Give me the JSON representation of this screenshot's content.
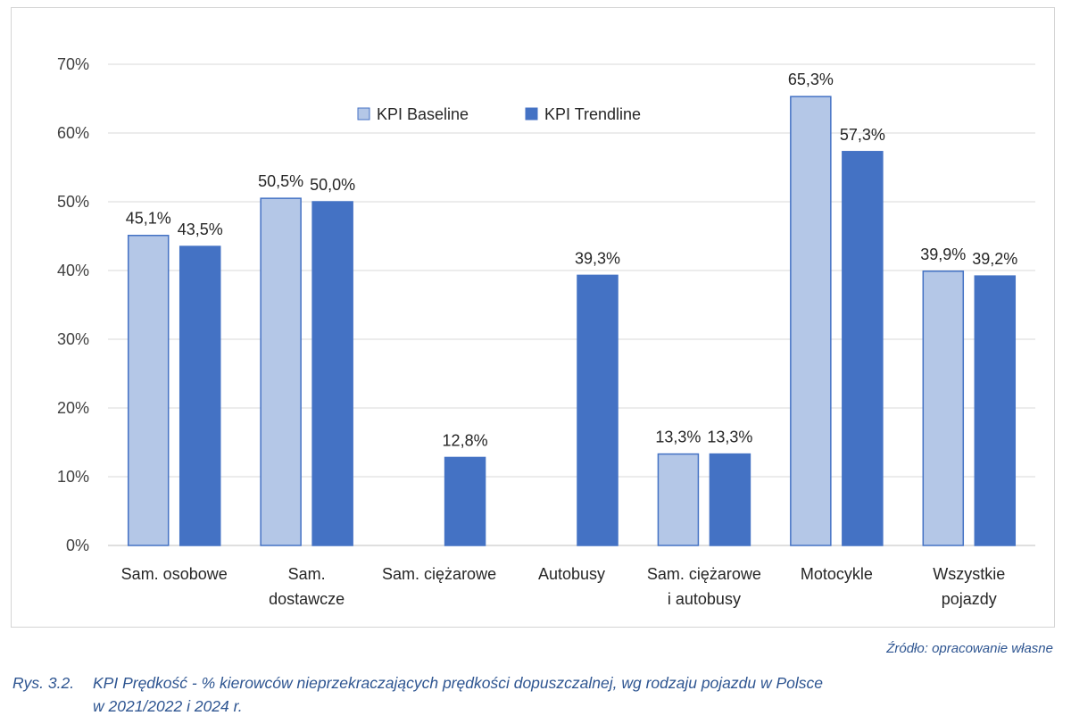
{
  "chart_data": {
    "type": "bar",
    "categories": [
      [
        "Sam. osobowe"
      ],
      [
        "Sam.",
        "dostawcze"
      ],
      [
        "Sam. ciężarowe"
      ],
      [
        "Autobusy"
      ],
      [
        "Sam. ciężarowe",
        "i autobusy"
      ],
      [
        "Motocykle"
      ],
      [
        "Wszystkie",
        "pojazdy"
      ]
    ],
    "series": [
      {
        "name": "KPI Baseline",
        "color": "#b4c7e7",
        "stroke": "#4472c4",
        "values": [
          45.1,
          50.5,
          null,
          null,
          13.3,
          65.3,
          39.9
        ],
        "labels": [
          "45,1%",
          "50,5%",
          "",
          "",
          "13,3%",
          "65,3%",
          "39,9%"
        ]
      },
      {
        "name": "KPI Trendline",
        "color": "#4472c4",
        "stroke": "#4472c4",
        "values": [
          43.5,
          50.0,
          12.8,
          39.3,
          13.3,
          57.3,
          39.2
        ],
        "labels": [
          "43,5%",
          "50,0%",
          "12,8%",
          "39,3%",
          "13,3%",
          "57,3%",
          "39,2%"
        ]
      }
    ],
    "y_ticks": [
      "0%",
      "10%",
      "20%",
      "30%",
      "40%",
      "50%",
      "60%",
      "70%"
    ],
    "ylim": [
      0,
      70
    ],
    "grid": true,
    "legend_position": "top-center"
  },
  "source_note": "Źródło: opracowanie własne",
  "caption": {
    "number": "Rys. 3.2.",
    "text_line1": "KPI Prędkość - % kierowców nieprzekraczających prędkości dopuszczalnej, wg rodzaju pojazdu w Polsce",
    "text_line2": "w 2021/2022 i 2024 r."
  }
}
